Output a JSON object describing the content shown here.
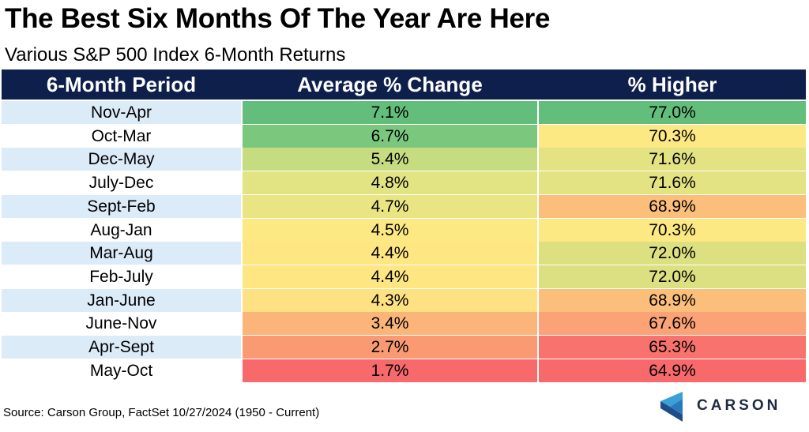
{
  "title": "The Best Six Months Of The Year Are Here",
  "subtitle": "Various S&P 500 Index 6-Month Returns",
  "source": "Source: Carson Group, FactSet 10/27/2024 (1950 - Current)",
  "logo": {
    "text": "CARSON",
    "icon": "carson-chevron-logo"
  },
  "colors": {
    "header_bg": "#0f1f4b",
    "period_stripe_light": "#dcebf8",
    "period_stripe_white": "#ffffff",
    "scale_high": "#63be7b",
    "scale_mid": "#ffeb84",
    "scale_low": "#f8696b"
  },
  "chart_data": {
    "type": "table",
    "columns": [
      "6-Month Period",
      "Average % Change",
      "% Higher"
    ],
    "rows": [
      {
        "period": "Nov-Apr",
        "avg_change": "7.1%",
        "pct_higher": "77.0%",
        "avg_value": 7.1,
        "higher_value": 77.0,
        "avg_color": "#63be7b",
        "higher_color": "#63be7b"
      },
      {
        "period": "Oct-Mar",
        "avg_change": "6.7%",
        "pct_higher": "70.3%",
        "avg_value": 6.7,
        "higher_value": 70.3,
        "avg_color": "#7cc77e",
        "higher_color": "#fde983"
      },
      {
        "period": "Dec-May",
        "avg_change": "5.4%",
        "pct_higher": "71.6%",
        "avg_value": 5.4,
        "higher_value": 71.6,
        "avg_color": "#c6dc81",
        "higher_color": "#e4e383"
      },
      {
        "period": "July-Dec",
        "avg_change": "4.8%",
        "pct_higher": "71.6%",
        "avg_value": 4.8,
        "higher_value": 71.6,
        "avg_color": "#e2e383",
        "higher_color": "#e4e383"
      },
      {
        "period": "Sept-Feb",
        "avg_change": "4.7%",
        "pct_higher": "68.9%",
        "avg_value": 4.7,
        "higher_value": 68.9,
        "avg_color": "#eae583",
        "higher_color": "#fcbf7b"
      },
      {
        "period": "Aug-Jan",
        "avg_change": "4.5%",
        "pct_higher": "70.3%",
        "avg_value": 4.5,
        "higher_value": 70.3,
        "avg_color": "#fde983",
        "higher_color": "#fde983"
      },
      {
        "period": "Mar-Aug",
        "avg_change": "4.4%",
        "pct_higher": "72.0%",
        "avg_value": 4.4,
        "higher_value": 72.0,
        "avg_color": "#fee683",
        "higher_color": "#dde081"
      },
      {
        "period": "Feb-July",
        "avg_change": "4.4%",
        "pct_higher": "72.0%",
        "avg_value": 4.4,
        "higher_value": 72.0,
        "avg_color": "#fee683",
        "higher_color": "#dde081"
      },
      {
        "period": "Jan-June",
        "avg_change": "4.3%",
        "pct_higher": "68.9%",
        "avg_value": 4.3,
        "higher_value": 68.9,
        "avg_color": "#fde182",
        "higher_color": "#fcbf7b"
      },
      {
        "period": "June-Nov",
        "avg_change": "3.4%",
        "pct_higher": "67.6%",
        "avg_value": 3.4,
        "higher_value": 67.6,
        "avg_color": "#fbb579",
        "higher_color": "#fba276"
      },
      {
        "period": "Apr-Sept",
        "avg_change": "2.7%",
        "pct_higher": "65.3%",
        "avg_value": 2.7,
        "higher_value": 65.3,
        "avg_color": "#f99a73",
        "higher_color": "#f8736d"
      },
      {
        "period": "May-Oct",
        "avg_change": "1.7%",
        "pct_higher": "64.9%",
        "avg_value": 1.7,
        "higher_value": 64.9,
        "avg_color": "#f8696b",
        "higher_color": "#f8696b"
      }
    ]
  }
}
